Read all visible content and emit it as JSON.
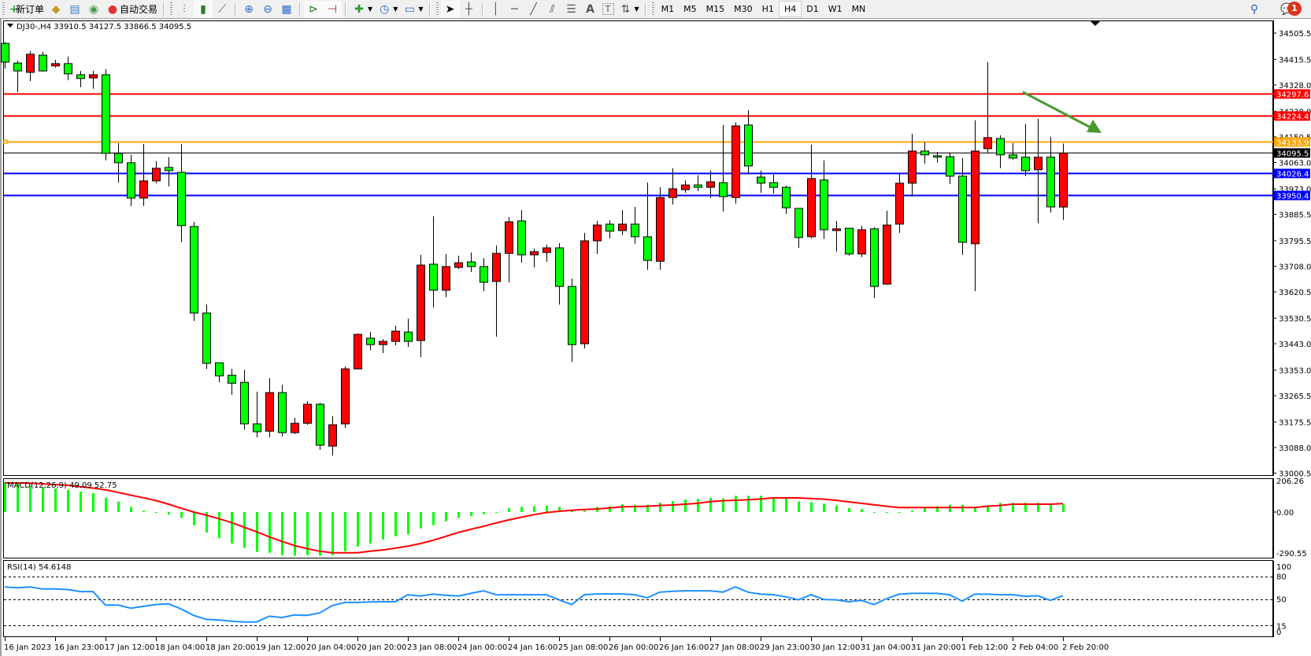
{
  "toolbar": {
    "new_order_label": "新订单",
    "auto_trading_label": "自动交易",
    "periods": [
      "M1",
      "M5",
      "M15",
      "M30",
      "H1",
      "H4",
      "D1",
      "W1",
      "MN"
    ],
    "active_period": "H4",
    "notification_count": "1",
    "icons": [
      "new-order-icon",
      "history-icon",
      "market-watch-icon",
      "signals-icon",
      "auto-trading-icon",
      "bar-chart-icon",
      "candlestick-icon",
      "line-chart-icon",
      "zoom-in-icon",
      "zoom-out-icon",
      "tile-windows-icon",
      "autoscroll-icon",
      "chart-shift-icon",
      "add-indicator-icon",
      "periods-clock-icon",
      "templates-icon",
      "cursor-icon",
      "crosshair-icon",
      "vertical-line-icon",
      "horizontal-line-icon",
      "trendline-icon",
      "equidistant-channel-icon",
      "fibonacci-icon",
      "text-icon",
      "text-label-icon",
      "arrows-icon",
      "search-icon",
      "notifications-icon"
    ]
  },
  "chart_header": "DJ30-,H4  33910.5 34127.5 33866.5 34095.5",
  "colors": {
    "bull_candle": "#ff0000",
    "bear_candle": "#00ff00",
    "macd_histogram": "#00ff00",
    "macd_signal": "#ff0000",
    "rsi_line": "#1e90ff",
    "arrow": "#4a9a30"
  },
  "chart_data": {
    "type": "candlestick",
    "symbol": "DJ30-",
    "timeframe": "H4",
    "ohlc_last": {
      "open": 33910.5,
      "high": 34127.5,
      "low": 33866.5,
      "close": 34095.5
    },
    "ylim": [
      33000.5,
      34550
    ],
    "price_ticks": [
      "34505.5",
      "34415.5",
      "34328.0",
      "34238.0",
      "34150.5",
      "34063.0",
      "33973.0",
      "33885.5",
      "33795.5",
      "33708.0",
      "33620.5",
      "33530.5",
      "33443.0",
      "33353.0",
      "33265.5",
      "33175.5",
      "33088.0",
      "33000.5"
    ],
    "x_tick_labels": [
      {
        "bar": 0,
        "label": "16 Jan 2023"
      },
      {
        "bar": 4,
        "label": "16 Jan 23:00"
      },
      {
        "bar": 8,
        "label": "17 Jan 12:00"
      },
      {
        "bar": 12,
        "label": "18 Jan 04:00"
      },
      {
        "bar": 16,
        "label": "18 Jan 20:00"
      },
      {
        "bar": 20,
        "label": "19 Jan 12:00"
      },
      {
        "bar": 24,
        "label": "20 Jan 04:00"
      },
      {
        "bar": 28,
        "label": "20 Jan 20:00"
      },
      {
        "bar": 32,
        "label": "23 Jan 08:00"
      },
      {
        "bar": 36,
        "label": "24 Jan 00:00"
      },
      {
        "bar": 40,
        "label": "24 Jan 16:00"
      },
      {
        "bar": 44,
        "label": "25 Jan 08:00"
      },
      {
        "bar": 48,
        "label": "26 Jan 00:00"
      },
      {
        "bar": 52,
        "label": "26 Jan 16:00"
      },
      {
        "bar": 56,
        "label": "27 Jan 08:00"
      },
      {
        "bar": 60,
        "label": "29 Jan 23:00"
      },
      {
        "bar": 64,
        "label": "30 Jan 12:00"
      },
      {
        "bar": 68,
        "label": "31 Jan 04:00"
      },
      {
        "bar": 72,
        "label": "31 Jan 20:00"
      },
      {
        "bar": 76,
        "label": "1 Feb 12:00"
      },
      {
        "bar": 80,
        "label": "2 Feb 04:00"
      },
      {
        "bar": 84,
        "label": "2 Feb 20:00"
      }
    ],
    "candles_ohlc": [
      [
        34470,
        34475,
        34384,
        34406
      ],
      [
        34403,
        34411,
        34304,
        34376
      ],
      [
        34371,
        34444,
        34341,
        34433
      ],
      [
        34430,
        34441,
        34374,
        34376
      ],
      [
        34393,
        34414,
        34387,
        34401
      ],
      [
        34401,
        34425,
        34344,
        34366
      ],
      [
        34363,
        34376,
        34320,
        34350
      ],
      [
        34352,
        34376,
        34315,
        34363
      ],
      [
        34363,
        34382,
        34070,
        34094
      ],
      [
        34094,
        34129,
        33994,
        34062
      ],
      [
        34062,
        34089,
        33914,
        33941
      ],
      [
        33941,
        34126,
        33914,
        34000
      ],
      [
        34000,
        34067,
        33992,
        34043
      ],
      [
        34046,
        34081,
        33981,
        34035
      ],
      [
        34029,
        34126,
        33790,
        33847
      ],
      [
        33844,
        33860,
        33521,
        33548
      ],
      [
        33548,
        33577,
        33357,
        33376
      ],
      [
        33378,
        33378,
        33311,
        33333
      ],
      [
        33335,
        33357,
        33268,
        33308
      ],
      [
        33311,
        33354,
        33150,
        33169
      ],
      [
        33169,
        33279,
        33123,
        33142
      ],
      [
        33144,
        33325,
        33123,
        33276
      ],
      [
        33276,
        33303,
        33126,
        33139
      ],
      [
        33139,
        33190,
        33134,
        33171
      ],
      [
        33171,
        33247,
        33166,
        33236
      ],
      [
        33236,
        33241,
        33080,
        33096
      ],
      [
        33093,
        33195,
        33061,
        33166
      ],
      [
        33169,
        33365,
        33155,
        33357
      ],
      [
        33357,
        33478,
        33355,
        33475
      ],
      [
        33462,
        33483,
        33421,
        33440
      ],
      [
        33440,
        33459,
        33411,
        33451
      ],
      [
        33451,
        33505,
        33438,
        33486
      ],
      [
        33483,
        33529,
        33432,
        33451
      ],
      [
        33454,
        33747,
        33397,
        33712
      ],
      [
        33715,
        33879,
        33567,
        33626
      ],
      [
        33626,
        33750,
        33602,
        33707
      ],
      [
        33704,
        33744,
        33699,
        33720
      ],
      [
        33723,
        33755,
        33688,
        33707
      ],
      [
        33707,
        33736,
        33623,
        33653
      ],
      [
        33656,
        33779,
        33467,
        33752
      ],
      [
        33752,
        33876,
        33653,
        33860
      ],
      [
        33863,
        33900,
        33720,
        33747
      ],
      [
        33747,
        33769,
        33704,
        33758
      ],
      [
        33755,
        33782,
        33723,
        33771
      ],
      [
        33771,
        33787,
        33577,
        33639
      ],
      [
        33639,
        33666,
        33381,
        33440
      ],
      [
        33443,
        33822,
        33427,
        33795
      ],
      [
        33795,
        33863,
        33750,
        33849
      ],
      [
        33852,
        33865,
        33803,
        33828
      ],
      [
        33830,
        33900,
        33814,
        33852
      ],
      [
        33852,
        33911,
        33785,
        33809
      ],
      [
        33809,
        33994,
        33696,
        33728
      ],
      [
        33725,
        33978,
        33696,
        33943
      ],
      [
        33943,
        34043,
        33919,
        33973
      ],
      [
        33970,
        34002,
        33959,
        33986
      ],
      [
        33986,
        34019,
        33965,
        33978
      ],
      [
        33978,
        34035,
        33941,
        33997
      ],
      [
        33994,
        34191,
        33895,
        33946
      ],
      [
        33943,
        34201,
        33922,
        34188
      ],
      [
        34191,
        34242,
        34024,
        34051
      ],
      [
        34013,
        34035,
        33959,
        33992
      ],
      [
        33994,
        34021,
        33957,
        33978
      ],
      [
        33978,
        33984,
        33887,
        33908
      ],
      [
        33906,
        33906,
        33771,
        33806
      ],
      [
        33809,
        34124,
        33803,
        34008
      ],
      [
        34003,
        34070,
        33801,
        33833
      ],
      [
        33830,
        33863,
        33758,
        33836
      ],
      [
        33838,
        33838,
        33744,
        33750
      ],
      [
        33750,
        33847,
        33739,
        33833
      ],
      [
        33836,
        33841,
        33599,
        33639
      ],
      [
        33647,
        33898,
        33645,
        33849
      ],
      [
        33852,
        34027,
        33822,
        33992
      ],
      [
        33992,
        34161,
        33946,
        34102
      ],
      [
        34102,
        34132,
        34059,
        34089
      ],
      [
        34086,
        34099,
        34062,
        34081
      ],
      [
        34083,
        34097,
        33989,
        34016
      ],
      [
        34016,
        34078,
        33747,
        33790
      ],
      [
        33785,
        34207,
        33623,
        34102
      ],
      [
        34110,
        34406,
        34097,
        34148
      ],
      [
        34145,
        34156,
        34043,
        34089
      ],
      [
        34089,
        34129,
        34072,
        34078
      ],
      [
        34081,
        34194,
        34016,
        34035
      ],
      [
        34038,
        34212,
        33855,
        34081
      ],
      [
        34081,
        34150,
        33892,
        33911
      ],
      [
        33910.5,
        34127.5,
        33866.5,
        34095.5
      ]
    ],
    "price_levels": [
      {
        "price": "34297.6",
        "color": "#ff0000",
        "tag_text": "#ffffff"
      },
      {
        "price": "34224.4",
        "color": "#ff0000",
        "tag_text": "#ffffff"
      },
      {
        "price": "34133.9",
        "color": "#ffa500",
        "tag_text": "#ffffff"
      },
      {
        "price": "34095.5",
        "color": "#000000",
        "tag_text": "#ffffff",
        "bid_line": true
      },
      {
        "price": "34026.4",
        "color": "#0000ff",
        "tag_text": "#ffffff"
      },
      {
        "price": "33950.4",
        "color": "#0000ff",
        "tag_text": "#ffffff"
      }
    ],
    "macd": {
      "label": "MACD(12,26,9) 49.09 52.75",
      "ylim": [
        -290.55,
        206.26
      ],
      "axis_labels": [
        "206.26",
        "0.00",
        "-290.55"
      ],
      "histogram": [
        182,
        179,
        162,
        154,
        146,
        138,
        127,
        117,
        89,
        65,
        32,
        8,
        0,
        -16,
        -36,
        -81,
        -127,
        -162,
        -195,
        -222,
        -247,
        -252,
        -268,
        -271,
        -268,
        -271,
        -268,
        -243,
        -214,
        -195,
        -170,
        -149,
        -138,
        -101,
        -81,
        -57,
        -36,
        -24,
        -13,
        0,
        24,
        32,
        36,
        41,
        32,
        13,
        8,
        32,
        36,
        49,
        45,
        45,
        58,
        68,
        78,
        81,
        88,
        84,
        101,
        101,
        101,
        89,
        89,
        65,
        62,
        52,
        41,
        24,
        19,
        0,
        -3,
        -3,
        8,
        24,
        36,
        45,
        45,
        32,
        41,
        57,
        57,
        57,
        57,
        49,
        49.09
      ],
      "signal": [
        182,
        180,
        179,
        175,
        170,
        166,
        157,
        149,
        138,
        122,
        105,
        89,
        71,
        49,
        24,
        0,
        -19,
        -41,
        -65,
        -94,
        -122,
        -154,
        -182,
        -208,
        -227,
        -243,
        -252,
        -252,
        -252,
        -243,
        -235,
        -224,
        -211,
        -195,
        -175,
        -151,
        -127,
        -107,
        -89,
        -68,
        -49,
        -32,
        -16,
        -3,
        5,
        11,
        16,
        19,
        26,
        32,
        34,
        36,
        41,
        44,
        49,
        54,
        65,
        70,
        73,
        76,
        81,
        88,
        88,
        88,
        84,
        80,
        73,
        63,
        54,
        45,
        36,
        28,
        28,
        28,
        28,
        28,
        28,
        28,
        36,
        41,
        49,
        49,
        49,
        49,
        52.75
      ]
    },
    "rsi": {
      "label": "RSI(14) 54.6148",
      "ylim": [
        0,
        100
      ],
      "levels": [
        80,
        50,
        15
      ],
      "axis_labels": [
        "100",
        "80",
        "50",
        "15",
        "0"
      ],
      "values": [
        66.0,
        65.0,
        66.0,
        63.3,
        63.3,
        62.6,
        59.9,
        59.9,
        42.1,
        42.1,
        38.1,
        40.4,
        42.8,
        43.9,
        37.0,
        28.5,
        23.4,
        22.4,
        21.0,
        20.0,
        20.0,
        27.5,
        25.8,
        29.2,
        28.5,
        31.9,
        41.5,
        45.6,
        45.6,
        46.2,
        46.6,
        46.6,
        55.8,
        54.1,
        56.5,
        55.1,
        54.1,
        57.5,
        60.9,
        55.8,
        55.8,
        55.8,
        55.8,
        55.8,
        49.0,
        42.8,
        55.8,
        56.8,
        56.8,
        56.8,
        55.8,
        51.7,
        59.2,
        60.2,
        60.9,
        60.9,
        60.9,
        59.2,
        66.0,
        59.2,
        56.5,
        55.8,
        53.1,
        49.0,
        55.8,
        49.6,
        49.0,
        46.6,
        48.3,
        42.8,
        50.7,
        56.5,
        57.5,
        57.5,
        57.5,
        55.8,
        47.3,
        56.5,
        56.5,
        55.8,
        55.8,
        53.7,
        54.4,
        48.3,
        54.6148
      ]
    }
  }
}
